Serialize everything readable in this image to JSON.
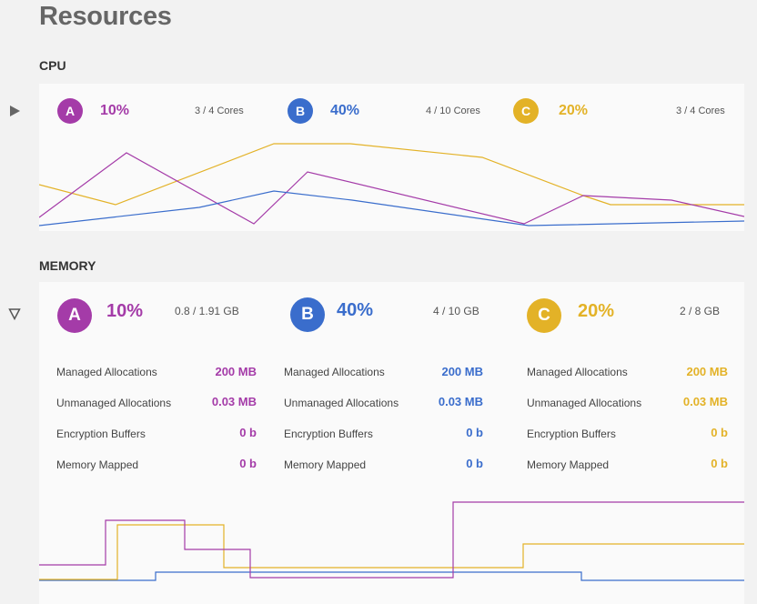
{
  "page": {
    "title": "Resources"
  },
  "cpu": {
    "label": "CPU",
    "processes": [
      {
        "letter": "A",
        "percent": "10%",
        "capacity": "3 / 4 Cores"
      },
      {
        "letter": "B",
        "percent": "40%",
        "capacity": "4 / 10 Cores"
      },
      {
        "letter": "C",
        "percent": "20%",
        "capacity": "3 / 4 Cores"
      }
    ]
  },
  "memory": {
    "label": "MEMORY",
    "processes": [
      {
        "letter": "A",
        "percent": "10%",
        "capacity": "0.8 / 1.91 GB",
        "rows": [
          {
            "label": "Managed Allocations",
            "value": "200 MB"
          },
          {
            "label": "Unmanaged Allocations",
            "value": "0.03 MB"
          },
          {
            "label": "Encryption Buffers",
            "value": "0 b"
          },
          {
            "label": "Memory Mapped",
            "value": "0 b"
          }
        ]
      },
      {
        "letter": "B",
        "percent": "40%",
        "capacity": "4 / 10 GB",
        "rows": [
          {
            "label": "Managed Allocations",
            "value": "200 MB"
          },
          {
            "label": "Unmanaged Allocations",
            "value": "0.03 MB"
          },
          {
            "label": "Encryption Buffers",
            "value": "0 b"
          },
          {
            "label": "Memory Mapped",
            "value": "0 b"
          }
        ]
      },
      {
        "letter": "C",
        "percent": "20%",
        "capacity": "2 / 8 GB",
        "rows": [
          {
            "label": "Managed Allocations",
            "value": "200 MB"
          },
          {
            "label": "Unmanaged Allocations",
            "value": "0.03 MB"
          },
          {
            "label": "Encryption Buffers",
            "value": "0 b"
          },
          {
            "label": "Memory Mapped",
            "value": "0 b"
          }
        ]
      }
    ]
  },
  "icons": {
    "cpu_toggle": "triangle-right-icon",
    "memory_toggle": "triangle-down-outline-icon"
  },
  "colors": {
    "A": "#a43ba8",
    "B": "#3a6dcc",
    "C": "#e3b227"
  }
}
